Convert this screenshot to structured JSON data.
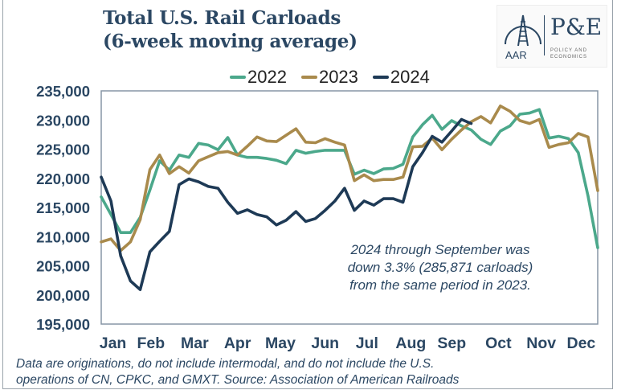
{
  "chart_data": {
    "type": "line",
    "title": "Total U.S. Rail Carloads",
    "subtitle": "(6-week moving average)",
    "xlabel": "",
    "ylabel": "",
    "x_tick_labels": [
      "Jan",
      "Feb",
      "Mar",
      "Apr",
      "May",
      "Jun",
      "Jul",
      "Aug",
      "Sep",
      "Oct",
      "Nov",
      "Dec"
    ],
    "y_tick_labels": [
      "235,000",
      "230,000",
      "225,000",
      "220,000",
      "215,000",
      "210,000",
      "205,000",
      "200,000",
      "195,000"
    ],
    "ylim": [
      195000,
      235000
    ],
    "x_unit": "week of year",
    "grid": false,
    "legend_position": "top",
    "series": [
      {
        "name": "2022",
        "color": "#4ba88b",
        "values": [
          216800,
          213800,
          210700,
          210700,
          213300,
          218000,
          223000,
          221400,
          224000,
          223600,
          226000,
          225700,
          224900,
          227000,
          224000,
          223600,
          223600,
          223400,
          223100,
          222500,
          224800,
          224300,
          224600,
          224800,
          224800,
          224800,
          220700,
          221400,
          220800,
          221600,
          221700,
          222400,
          227100,
          229200,
          230800,
          228400,
          229900,
          229000,
          228300,
          226700,
          225800,
          228100,
          229000,
          231000,
          231200,
          231800,
          226900,
          227200,
          226800,
          224400,
          217000,
          208100
        ]
      },
      {
        "name": "2023",
        "color": "#a98a4c",
        "values": [
          209100,
          209600,
          207600,
          209100,
          212900,
          221500,
          224000,
          220800,
          222000,
          220900,
          223000,
          223700,
          224400,
          224600,
          224000,
          225500,
          227100,
          226400,
          226300,
          227400,
          228500,
          226200,
          226100,
          226800,
          226200,
          225700,
          219600,
          220600,
          219600,
          219800,
          219800,
          220200,
          225400,
          225500,
          226900,
          224900,
          226700,
          228300,
          229700,
          230600,
          229500,
          232400,
          231500,
          229900,
          229400,
          230100,
          225300,
          225800,
          226100,
          227700,
          227100,
          217900
        ]
      },
      {
        "name": "2024",
        "color": "#1e3a56",
        "values": [
          220200,
          216100,
          206700,
          202400,
          200900,
          207400,
          209200,
          210900,
          218900,
          219900,
          219400,
          218600,
          218300,
          215900,
          214000,
          214600,
          213800,
          213400,
          212000,
          212800,
          214300,
          212600,
          213100,
          214500,
          216100,
          218300,
          214500,
          216100,
          215400,
          216500,
          216500,
          215900,
          222000,
          224400,
          227200,
          226200,
          228100,
          230100,
          229400
        ]
      }
    ],
    "annotation": [
      "2024 through September was",
      "down 3.3% (285,871 carloads)",
      "from the same period in 2023."
    ]
  },
  "logo": {
    "left": "AAR",
    "right": "P&E",
    "sub1": "POLICY AND",
    "sub2": "ECONOMICS"
  },
  "footnote": [
    "Data are originations, do not include intermodal, and do not include the U.S.",
    "operations of CN, CPKC, and GMXT. Source: Association of American Railroads"
  ]
}
